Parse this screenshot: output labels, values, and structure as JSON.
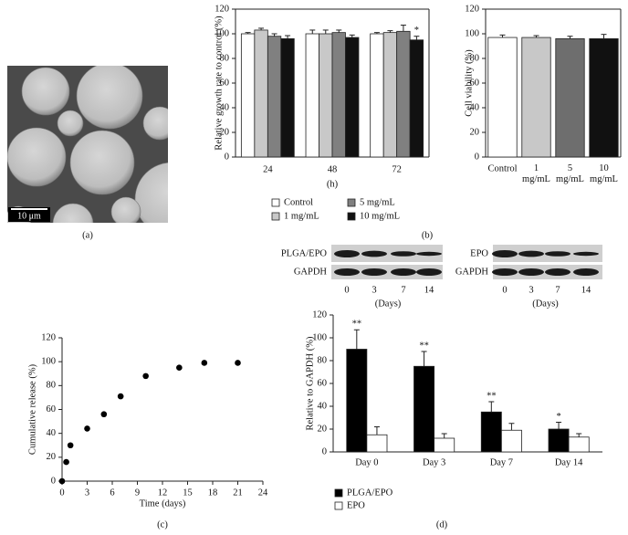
{
  "panels": {
    "a": "(a)",
    "b": "(b)",
    "c": "(c)",
    "d": "(d)"
  },
  "image": {
    "scale_bar": "10 μm"
  },
  "blots": [
    {
      "target": "PLGA/EPO",
      "control": "GAPDH",
      "lanes": [
        "0",
        "3",
        "7",
        "14"
      ],
      "x_label": "(Days)"
    },
    {
      "target": "EPO",
      "control": "GAPDH",
      "lanes": [
        "0",
        "3",
        "7",
        "14"
      ],
      "x_label": "(Days)"
    }
  ],
  "chart_data": [
    {
      "type": "bar",
      "ylabel": "Relative growth rate to control (%)",
      "xlabel": "(h)",
      "categories": [
        "24",
        "48",
        "72"
      ],
      "series": [
        {
          "name": "Control",
          "color": "#ffffff",
          "values": [
            100,
            100,
            100
          ],
          "errors": [
            1,
            3,
            1
          ]
        },
        {
          "name": "1 mg/mL",
          "color": "#c8c8c8",
          "values": [
            103,
            100,
            101
          ],
          "errors": [
            1.5,
            3,
            1.5
          ]
        },
        {
          "name": "5 mg/mL",
          "color": "#808080",
          "values": [
            98,
            101,
            102
          ],
          "errors": [
            2,
            2,
            5
          ]
        },
        {
          "name": "10 mg/mL",
          "color": "#111111",
          "values": [
            96,
            97,
            95
          ],
          "errors": [
            2.5,
            2,
            3
          ],
          "value_annotations": [
            null,
            null,
            "*"
          ]
        }
      ],
      "ylim": [
        0,
        120
      ],
      "yticks": [
        0,
        20,
        40,
        60,
        80,
        100,
        120
      ],
      "frame": true,
      "legend": "bottom"
    },
    {
      "type": "bar",
      "ylabel": "Cell viability (%)",
      "categories": [
        "Control",
        "1 mg/mL",
        "5 mg/mL",
        "10 mg/mL"
      ],
      "series": [
        {
          "colors": [
            "#ffffff",
            "#c8c8c8",
            "#6e6e6e",
            "#111111"
          ],
          "values": [
            97,
            97,
            96,
            96
          ],
          "errors": [
            2,
            1.5,
            2,
            3.5
          ]
        }
      ],
      "ylim": [
        0,
        120
      ],
      "yticks": [
        0,
        20,
        40,
        60,
        80,
        100,
        120
      ],
      "frame": true
    },
    {
      "type": "scatter",
      "ylabel": "Cumulative release (%)",
      "xlabel": "Time (days)",
      "x": [
        0,
        0.5,
        1,
        3,
        5,
        7,
        10,
        14,
        17,
        21
      ],
      "values": [
        0,
        16,
        30,
        44,
        56,
        71,
        88,
        95,
        99,
        99
      ],
      "color": "#000000",
      "xlim": [
        0,
        24
      ],
      "xticks": [
        0,
        3,
        6,
        9,
        12,
        15,
        18,
        21,
        24
      ],
      "ylim": [
        0,
        120
      ],
      "yticks": [
        0,
        20,
        40,
        60,
        80,
        100,
        120
      ],
      "frame": false
    },
    {
      "type": "bar",
      "ylabel": "Relative to GAPDH (%)",
      "categories": [
        "Day 0",
        "Day 3",
        "Day 7",
        "Day 14"
      ],
      "series": [
        {
          "name": "PLGA/EPO",
          "color": "#000000",
          "values": [
            90,
            75,
            35,
            20
          ],
          "errors": [
            17,
            13,
            9,
            6
          ],
          "value_annotations": [
            "**",
            "**",
            "**",
            "*"
          ]
        },
        {
          "name": "EPO",
          "color": "#ffffff",
          "values": [
            15,
            12,
            19,
            13
          ],
          "errors": [
            7,
            4,
            6,
            3
          ]
        }
      ],
      "ylim": [
        0,
        120
      ],
      "yticks": [
        0,
        20,
        40,
        60,
        80,
        100,
        120
      ],
      "frame": false,
      "legend": "bottom-left"
    }
  ]
}
